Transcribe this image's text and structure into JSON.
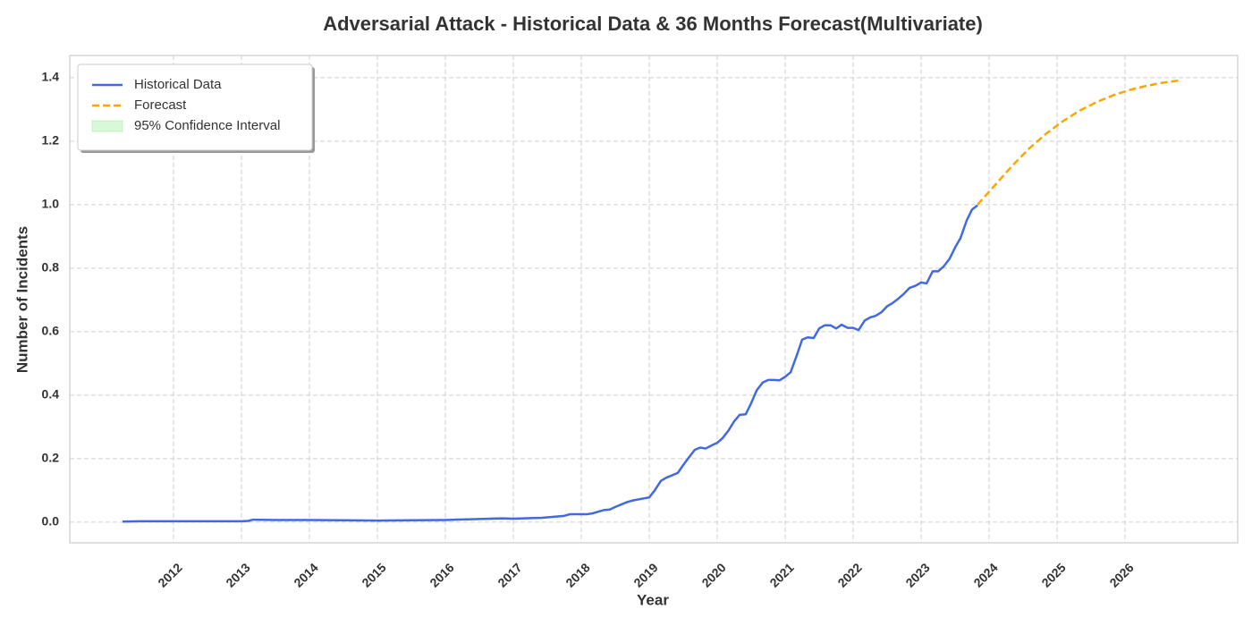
{
  "chart_data": {
    "type": "line",
    "title": "Adversarial Attack - Historical Data & 36 Months Forecast(Multivariate)",
    "xlabel": "Year",
    "ylabel": "Number of Incidents",
    "xlim": [
      2010.474,
      2027.658
    ],
    "ylim": [
      -0.065,
      1.47
    ],
    "xticks": [
      2012,
      2013,
      2014,
      2015,
      2016,
      2017,
      2018,
      2019,
      2020,
      2021,
      2022,
      2023,
      2024,
      2025,
      2026
    ],
    "yticks": [
      {
        "value": 0,
        "label": "0.0"
      },
      0.2,
      0.4,
      0.6,
      0.8,
      {
        "value": 1,
        "label": "1.0"
      },
      1.2,
      1.4
    ],
    "grid": true,
    "legend": "upper left",
    "series": [
      {
        "name": "Historical Data",
        "color": "#4169e1",
        "dash": "solid",
        "x": [
          2011.25,
          2011.5,
          2012.0,
          2012.5,
          2013.0,
          2013.1,
          2013.17,
          2013.5,
          2014.0,
          2014.5,
          2015.0,
          2015.5,
          2016.0,
          2016.5,
          2016.83,
          2017.0,
          2017.42,
          2017.75,
          2017.83,
          2018.08,
          2018.17,
          2018.33,
          2018.42,
          2018.5,
          2018.67,
          2018.75,
          2018.92,
          2019.0,
          2019.08,
          2019.17,
          2019.25,
          2019.42,
          2019.5,
          2019.58,
          2019.67,
          2019.75,
          2019.83,
          2019.92,
          2020.0,
          2020.08,
          2020.17,
          2020.25,
          2020.33,
          2020.42,
          2020.5,
          2020.58,
          2020.67,
          2020.75,
          2020.83,
          2020.92,
          2021.0,
          2021.08,
          2021.17,
          2021.25,
          2021.33,
          2021.42,
          2021.5,
          2021.58,
          2021.67,
          2021.75,
          2021.83,
          2021.92,
          2022.0,
          2022.08,
          2022.17,
          2022.25,
          2022.33,
          2022.42,
          2022.5,
          2022.58,
          2022.67,
          2022.75,
          2022.83,
          2022.92,
          2023.0,
          2023.08,
          2023.17,
          2023.25,
          2023.33,
          2023.42,
          2023.5,
          2023.58,
          2023.67,
          2023.75,
          2023.83
        ],
        "values": [
          0.002,
          0.003,
          0.003,
          0.003,
          0.003,
          0.004,
          0.008,
          0.007,
          0.007,
          0.006,
          0.005,
          0.006,
          0.007,
          0.01,
          0.012,
          0.011,
          0.014,
          0.02,
          0.025,
          0.025,
          0.028,
          0.038,
          0.04,
          0.048,
          0.063,
          0.068,
          0.075,
          0.078,
          0.1,
          0.13,
          0.14,
          0.155,
          0.18,
          0.203,
          0.228,
          0.235,
          0.232,
          0.242,
          0.25,
          0.265,
          0.29,
          0.318,
          0.338,
          0.34,
          0.375,
          0.415,
          0.44,
          0.448,
          0.448,
          0.447,
          0.458,
          0.472,
          0.525,
          0.575,
          0.582,
          0.58,
          0.61,
          0.62,
          0.62,
          0.61,
          0.622,
          0.612,
          0.612,
          0.605,
          0.635,
          0.645,
          0.65,
          0.662,
          0.68,
          0.69,
          0.705,
          0.72,
          0.738,
          0.745,
          0.755,
          0.752,
          0.79,
          0.79,
          0.805,
          0.83,
          0.865,
          0.895,
          0.95,
          0.985,
          0.998
        ]
      },
      {
        "name": "Forecast",
        "color": "#ffa500",
        "dash": "dashed",
        "x": [
          2023.83,
          2024.08,
          2024.33,
          2024.58,
          2024.83,
          2025.08,
          2025.33,
          2025.58,
          2025.83,
          2026.08,
          2026.33,
          2026.58,
          2026.83
        ],
        "values": [
          1.0,
          1.06,
          1.12,
          1.175,
          1.222,
          1.262,
          1.296,
          1.323,
          1.345,
          1.362,
          1.375,
          1.385,
          1.392
        ]
      }
    ],
    "confidence_interval": {
      "name": "95% Confidence Interval",
      "color": "#90ee90"
    }
  }
}
